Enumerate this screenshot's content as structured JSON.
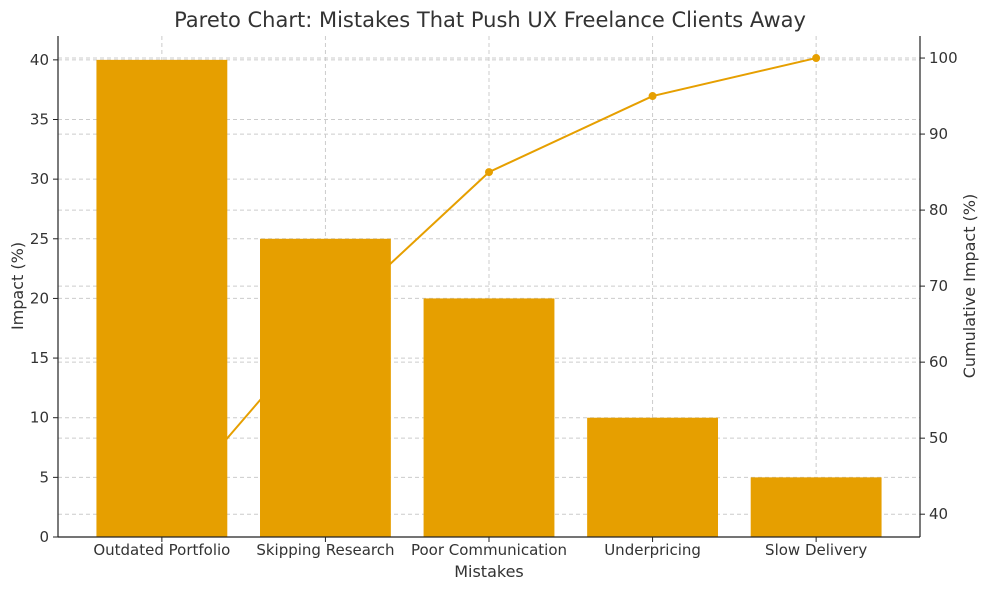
{
  "chart_data": {
    "type": "bar",
    "title": "Pareto Chart: Mistakes That Push UX Freelance Clients Away",
    "xlabel": "Mistakes",
    "ylabel": "Impact (%)",
    "y2label": "Cumulative Impact (%)",
    "categories": [
      "Outdated Portfolio",
      "Skipping Research",
      "Poor Communication",
      "Underpricing",
      "Slow Delivery"
    ],
    "series": [
      {
        "type": "bar",
        "axis": "left",
        "values": [
          40,
          25,
          20,
          10,
          5
        ],
        "color": "#E69F00"
      },
      {
        "type": "line",
        "axis": "right",
        "values": [
          40,
          65,
          85,
          95,
          100
        ],
        "color": "#E69F00",
        "marker": "circle"
      }
    ],
    "ylim": [
      0,
      42
    ],
    "y2lim": [
      37,
      102.9
    ],
    "yticks": [
      0,
      5,
      10,
      15,
      20,
      25,
      30,
      35,
      40
    ],
    "y2ticks": [
      40,
      50,
      60,
      70,
      80,
      90,
      100
    ],
    "grid": true,
    "grid_style": "dashed"
  }
}
